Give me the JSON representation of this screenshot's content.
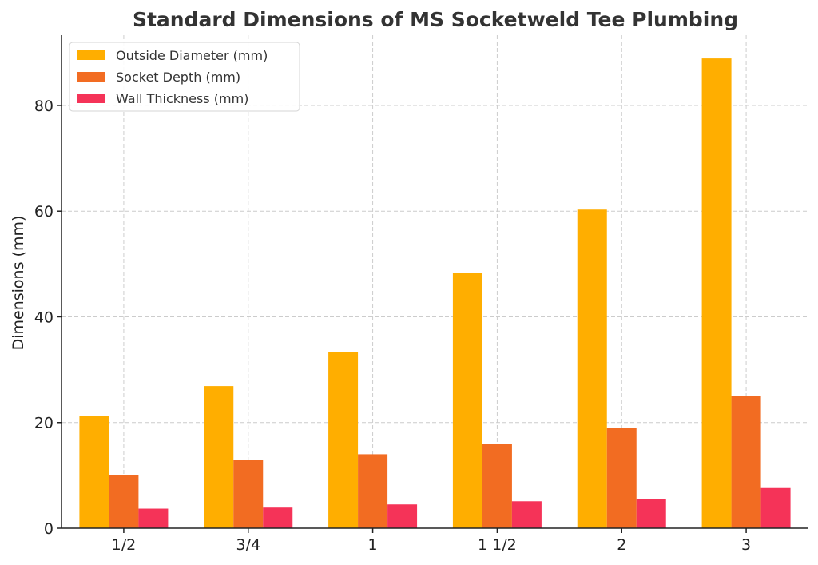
{
  "chart_data": {
    "type": "bar",
    "title": "Standard Dimensions of MS Socketweld Tee Plumbing",
    "xlabel": "",
    "ylabel": "Dimensions (mm)",
    "categories": [
      "1/2",
      "3/4",
      "1",
      "1 1/2",
      "2",
      "3"
    ],
    "series": [
      {
        "name": "Outside Diameter (mm)",
        "color": "#ffae00",
        "values": [
          21.3,
          26.9,
          33.4,
          48.3,
          60.3,
          88.9
        ]
      },
      {
        "name": "Socket Depth (mm)",
        "color": "#f26c22",
        "values": [
          10,
          13,
          14,
          16,
          19,
          25
        ]
      },
      {
        "name": "Wall Thickness (mm)",
        "color": "#f53358",
        "values": [
          3.7,
          3.9,
          4.5,
          5.1,
          5.5,
          7.6
        ]
      }
    ],
    "ylim": [
      0,
      93.3
    ],
    "yticks": [
      0,
      20,
      40,
      60,
      80
    ],
    "grid": true,
    "legend_position": "top-left"
  }
}
